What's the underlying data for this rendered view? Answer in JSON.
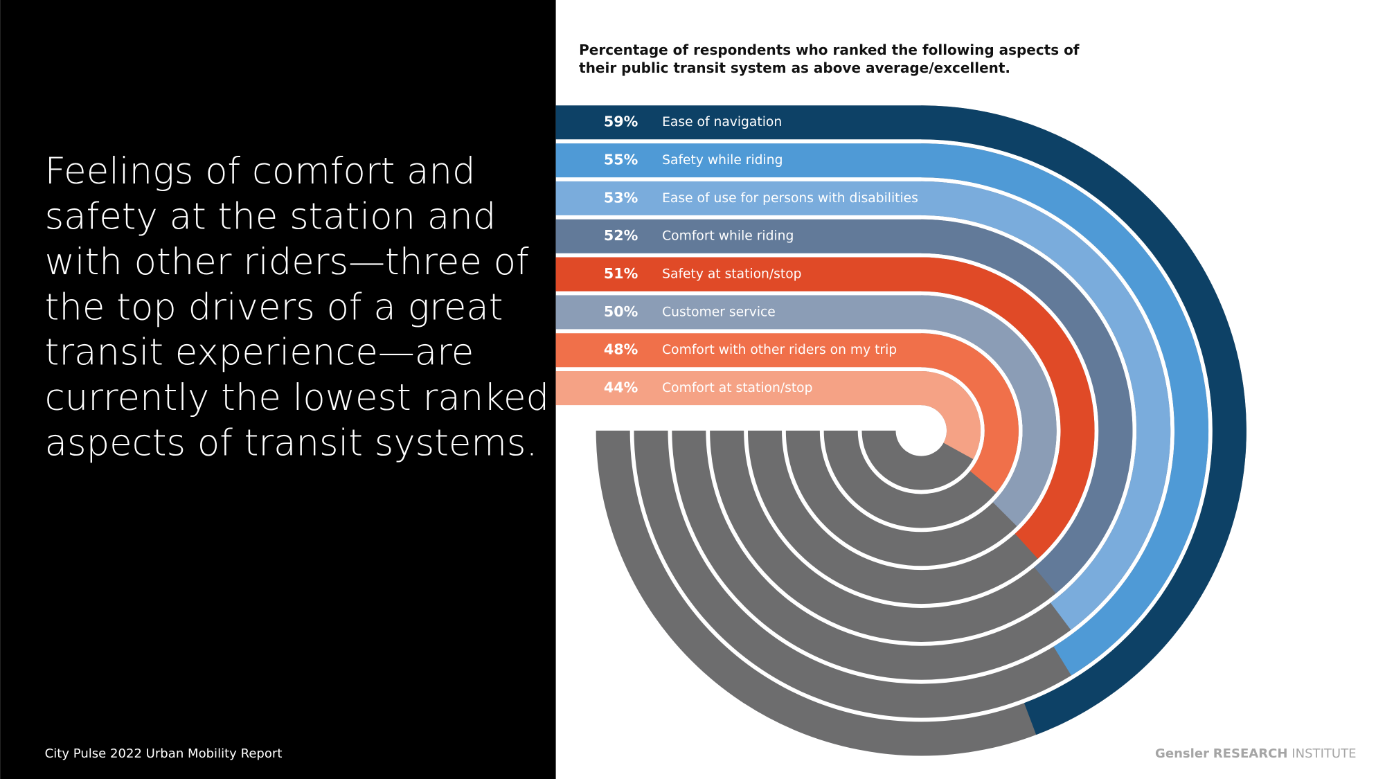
{
  "headline_lines": [
    "Feelings of comfort and",
    "safety at the station and",
    "with other riders—three of",
    "the top drivers of a great",
    "transit experience—are",
    "currently the lowest ranked",
    "aspects of transit systems."
  ],
  "footer": "City Pulse 2022 Urban Mobility Report",
  "brand": {
    "name": "Gensler",
    "unit": "RESEARCH",
    "suffix": "INSTITUTE"
  },
  "chart_data": {
    "type": "radial_bar",
    "title_lines": [
      "Percentage of respondents who ranked the following aspects of",
      "their public transit system as above average/excellent."
    ],
    "categories": [
      "Ease of navigation",
      "Safety while riding",
      "Ease of use for persons with disabilities",
      "Comfort while riding",
      "Safety at station/stop",
      "Customer service",
      "Comfort with other riders on my trip",
      "Comfort at station/stop"
    ],
    "values": [
      59,
      55,
      53,
      52,
      51,
      50,
      48,
      44
    ],
    "value_labels": [
      "59%",
      "55%",
      "53%",
      "52%",
      "51%",
      "50%",
      "48%",
      "44%"
    ],
    "colors": [
      "#0d4166",
      "#4f9ad6",
      "#7aacdc",
      "#627a99",
      "#e04a27",
      "#8b9db6",
      "#f0704a",
      "#f5a285"
    ],
    "track_color": "#6d6d6e",
    "ylim": [
      0,
      100
    ]
  }
}
